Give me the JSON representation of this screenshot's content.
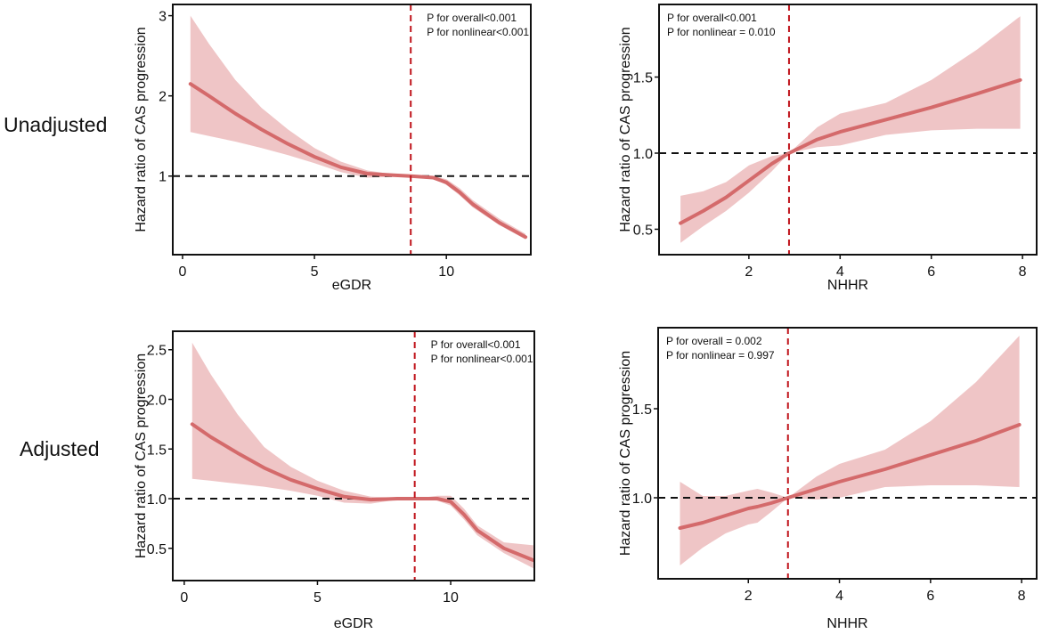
{
  "row_labels": [
    "Unadjusted",
    "Adjusted"
  ],
  "colors": {
    "curve": "#d46a6b",
    "band": "#eab2b3",
    "ref_vertical": "#c0141c",
    "ref_horizontal": "#111111"
  },
  "chart_data": [
    {
      "type": "line",
      "row": "Unadjusted",
      "xlabel": "eGDR",
      "ylabel": "Hazard ratio of CAS progression",
      "xlim": [
        -0.37,
        13.2
      ],
      "ylim": [
        0.02,
        3.14
      ],
      "xticks": [
        0,
        5,
        10
      ],
      "yticks": [
        1,
        2,
        3
      ],
      "ytick_labels": [
        "1",
        "2",
        "3"
      ],
      "ref_x": 8.65,
      "ref_y": 1,
      "annotations": [
        "P for overall<0.001",
        "P for nonlinear<0.001"
      ],
      "annotation_position": "top-right",
      "x": [
        0.3,
        1,
        2,
        3,
        4,
        5,
        6,
        7,
        8,
        8.65,
        9.5,
        10,
        10.5,
        11,
        12,
        13.0
      ],
      "y": [
        2.15,
        2.0,
        1.78,
        1.58,
        1.4,
        1.24,
        1.11,
        1.03,
        1.01,
        1.0,
        0.98,
        0.92,
        0.8,
        0.65,
        0.42,
        0.24
      ],
      "lower": [
        1.55,
        1.5,
        1.43,
        1.35,
        1.26,
        1.16,
        1.05,
        0.98,
        0.99,
        1.0,
        0.97,
        0.89,
        0.76,
        0.61,
        0.39,
        0.21
      ],
      "upper": [
        3.0,
        2.65,
        2.2,
        1.85,
        1.58,
        1.35,
        1.18,
        1.07,
        1.02,
        1.0,
        1.0,
        0.96,
        0.85,
        0.7,
        0.47,
        0.28
      ]
    },
    {
      "type": "line",
      "row": "Unadjusted",
      "xlabel": "NHHR",
      "ylabel": "Hazard ratio of CAS progression",
      "xlim": [
        0.03,
        8.31
      ],
      "ylim": [
        0.333,
        1.977
      ],
      "xticks": [
        2,
        4,
        6,
        8
      ],
      "yticks": [
        0.5,
        1.0,
        1.5
      ],
      "ytick_labels": [
        "0.5",
        "1.0",
        "1.5"
      ],
      "ref_x": 2.88,
      "ref_y": 1,
      "annotations": [
        "P for overall<0.001",
        "P for nonlinear = 0.010"
      ],
      "annotation_position": "top-left",
      "x": [
        0.5,
        1,
        1.5,
        2,
        2.5,
        2.88,
        3.5,
        4,
        5,
        6,
        7,
        7.95
      ],
      "y": [
        0.54,
        0.62,
        0.71,
        0.82,
        0.93,
        1.0,
        1.09,
        1.14,
        1.22,
        1.3,
        1.39,
        1.48
      ],
      "lower": [
        0.41,
        0.52,
        0.62,
        0.74,
        0.88,
        1.0,
        1.04,
        1.05,
        1.12,
        1.15,
        1.16,
        1.16
      ],
      "upper": [
        0.72,
        0.75,
        0.81,
        0.92,
        0.98,
        1.0,
        1.17,
        1.26,
        1.33,
        1.48,
        1.68,
        1.9
      ]
    },
    {
      "type": "line",
      "row": "Adjusted",
      "xlabel": "eGDR",
      "ylabel": "Hazard ratio of CAS progression",
      "xlim": [
        -0.43,
        13.14
      ],
      "ylim": [
        0.175,
        2.686
      ],
      "xticks": [
        0,
        5,
        10
      ],
      "yticks": [
        0.5,
        1.0,
        1.5,
        2.0,
        2.5
      ],
      "ytick_labels": [
        "0.5",
        "1.0",
        "1.5",
        "2.0",
        "2.5"
      ],
      "ref_x": 8.65,
      "ref_y": 1,
      "annotations": [
        "P for overall<0.001",
        "P for nonlinear<0.001"
      ],
      "annotation_position": "top-right",
      "x": [
        0.3,
        1,
        2,
        3,
        4,
        5,
        6,
        7,
        8,
        8.65,
        9.5,
        10,
        10.5,
        11,
        12,
        13.1
      ],
      "y": [
        1.75,
        1.62,
        1.46,
        1.31,
        1.19,
        1.1,
        1.02,
        0.99,
        1.0,
        1.0,
        1.0,
        0.97,
        0.84,
        0.68,
        0.5,
        0.38
      ],
      "lower": [
        1.2,
        1.18,
        1.15,
        1.12,
        1.08,
        1.03,
        0.96,
        0.95,
        0.99,
        1.0,
        0.98,
        0.93,
        0.79,
        0.63,
        0.45,
        0.3
      ],
      "upper": [
        2.57,
        2.25,
        1.85,
        1.52,
        1.32,
        1.18,
        1.08,
        1.02,
        1.01,
        1.0,
        1.03,
        1.03,
        0.9,
        0.73,
        0.56,
        0.53
      ]
    },
    {
      "type": "line",
      "row": "Adjusted",
      "xlabel": "NHHR",
      "ylabel": "Hazard ratio of CAS progression",
      "xlim": [
        0.02,
        8.33
      ],
      "ylim": [
        0.545,
        1.955
      ],
      "xticks": [
        2,
        4,
        6,
        8
      ],
      "yticks": [
        1.0,
        1.5
      ],
      "ytick_labels": [
        "1.0",
        "1.5"
      ],
      "ref_x": 2.87,
      "ref_y": 1,
      "annotations": [
        "P for overall = 0.002",
        "P for nonlinear = 0.997"
      ],
      "annotation_position": "top-left",
      "x": [
        0.5,
        1,
        1.5,
        2,
        2.2,
        2.5,
        2.87,
        3.5,
        4,
        5,
        6,
        7,
        7.95
      ],
      "y": [
        0.83,
        0.86,
        0.9,
        0.94,
        0.95,
        0.97,
        1.0,
        1.05,
        1.09,
        1.16,
        1.24,
        1.32,
        1.41
      ],
      "lower": [
        0.62,
        0.72,
        0.8,
        0.85,
        0.86,
        0.92,
        1.0,
        0.99,
        1.0,
        1.06,
        1.07,
        1.07,
        1.06
      ],
      "upper": [
        1.09,
        1.01,
        1.01,
        1.04,
        1.05,
        1.03,
        1.0,
        1.12,
        1.19,
        1.27,
        1.43,
        1.65,
        1.91
      ]
    }
  ]
}
